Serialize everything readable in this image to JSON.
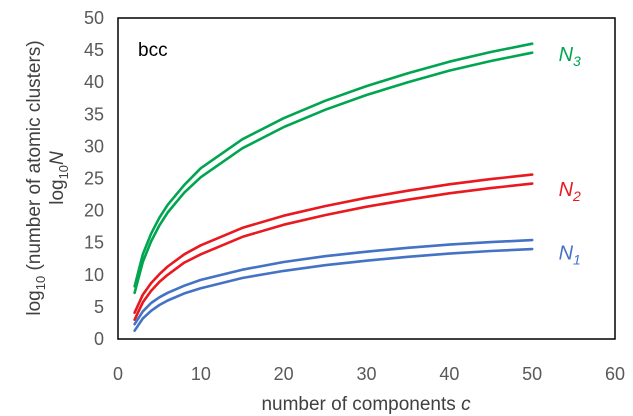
{
  "chart_data": {
    "type": "line",
    "title": "",
    "xlabel_text": "number of components",
    "xlabel_var": "c",
    "ylabel_line1_a": "log",
    "ylabel_line1_sub": "10",
    "ylabel_line1_b": " (number of atomic clusters)",
    "ylabel_line2_a": "log",
    "ylabel_line2_sub": "10",
    "ylabel_line2_var": "N",
    "annotation": "bcc",
    "xlim": [
      0,
      60
    ],
    "ylim": [
      0,
      50
    ],
    "xticks": [
      "0",
      "10",
      "20",
      "30",
      "40",
      "50",
      "60"
    ],
    "yticks": [
      "0",
      "5",
      "10",
      "15",
      "20",
      "25",
      "30",
      "35",
      "40",
      "45",
      "50"
    ],
    "grid": false,
    "legend": "none",
    "series": [
      {
        "group": "N_3",
        "color": "#00a550",
        "x": [
          2,
          3,
          4,
          5,
          6,
          8,
          10,
          15,
          20,
          25,
          30,
          35,
          40,
          45,
          50
        ],
        "y": [
          7.2,
          12.0,
          15.2,
          17.7,
          19.7,
          22.8,
          25.2,
          29.7,
          33.0,
          35.7,
          38.0,
          40.0,
          41.8,
          43.3,
          44.6
        ]
      },
      {
        "group": "N_3",
        "color": "#00a550",
        "x": [
          2,
          3,
          4,
          5,
          6,
          8,
          10,
          15,
          20,
          25,
          30,
          35,
          40,
          45,
          50
        ],
        "y": [
          8.2,
          13.2,
          16.4,
          18.9,
          20.9,
          24.0,
          26.6,
          31.1,
          34.4,
          37.1,
          39.4,
          41.4,
          43.2,
          44.7,
          46.0
        ]
      },
      {
        "group": "N_2",
        "color": "#e8191f",
        "x": [
          2,
          3,
          4,
          5,
          6,
          8,
          10,
          15,
          20,
          25,
          30,
          35,
          40,
          45,
          50
        ],
        "y": [
          3.0,
          5.7,
          7.5,
          8.9,
          10.0,
          11.9,
          13.2,
          15.9,
          17.8,
          19.3,
          20.6,
          21.7,
          22.7,
          23.5,
          24.2
        ]
      },
      {
        "group": "N_2",
        "color": "#e8191f",
        "x": [
          2,
          3,
          4,
          5,
          6,
          8,
          10,
          15,
          20,
          25,
          30,
          35,
          40,
          45,
          50
        ],
        "y": [
          4.1,
          6.9,
          8.7,
          10.1,
          11.3,
          13.2,
          14.6,
          17.3,
          19.2,
          20.7,
          22.0,
          23.1,
          24.1,
          24.9,
          25.6
        ]
      },
      {
        "group": "N_1",
        "color": "#4472c4",
        "x": [
          2,
          3,
          4,
          5,
          6,
          8,
          10,
          15,
          20,
          25,
          30,
          35,
          40,
          45,
          50
        ],
        "y": [
          1.3,
          3.2,
          4.4,
          5.3,
          6.0,
          7.1,
          7.9,
          9.5,
          10.6,
          11.5,
          12.2,
          12.8,
          13.3,
          13.7,
          14.0
        ]
      },
      {
        "group": "N_1",
        "color": "#4472c4",
        "x": [
          2,
          3,
          4,
          5,
          6,
          8,
          10,
          15,
          20,
          25,
          30,
          35,
          40,
          45,
          50
        ],
        "y": [
          2.3,
          4.3,
          5.6,
          6.5,
          7.2,
          8.3,
          9.2,
          10.8,
          12.0,
          12.9,
          13.6,
          14.2,
          14.7,
          15.1,
          15.4
        ]
      }
    ],
    "series_labels": [
      {
        "main": "N",
        "sub": "3",
        "color": "#00a550",
        "x": 51.5,
        "y": 44.2
      },
      {
        "main": "N",
        "sub": "2",
        "color": "#e8191f",
        "x": 51.5,
        "y": 23.2
      },
      {
        "main": "N",
        "sub": "1",
        "color": "#4472c4",
        "x": 51.5,
        "y": 13.3
      }
    ]
  }
}
